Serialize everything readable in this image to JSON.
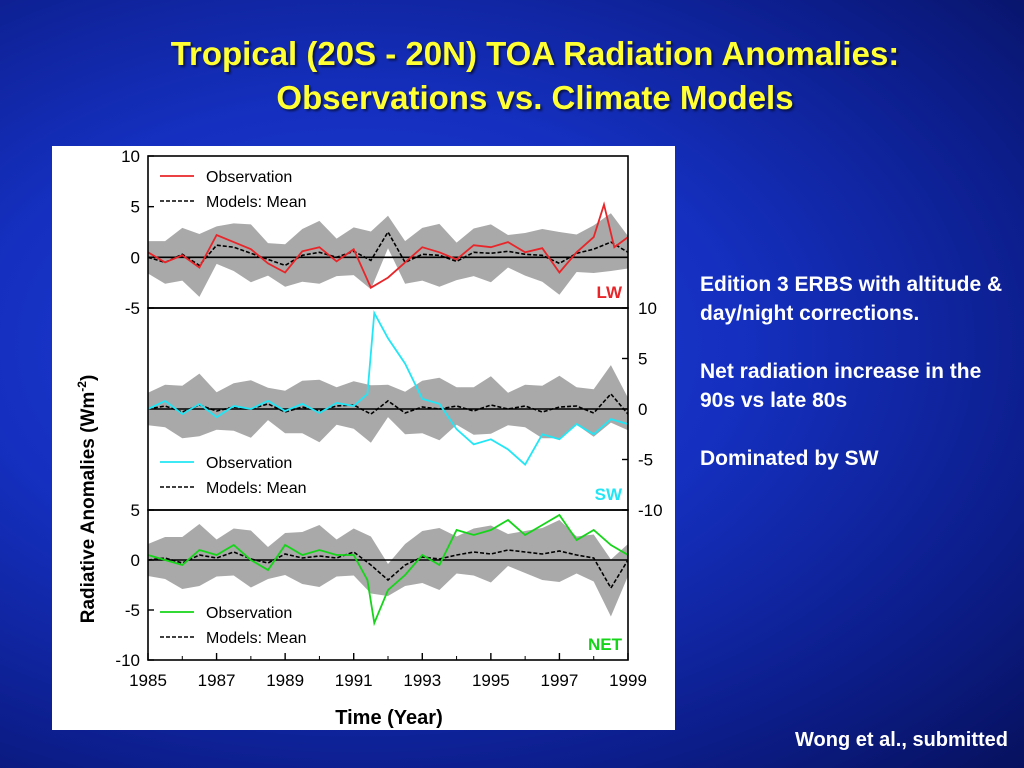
{
  "slide": {
    "title_line1": "Tropical (20S - 20N)  TOA Radiation Anomalies:",
    "title_line2": "Observations vs. Climate Models",
    "notes": [
      "Edition 3 ERBS with altitude & day/night corrections.",
      "Net radiation increase in the 90s vs late 80s",
      "Dominated by SW"
    ],
    "citation": "Wong et al., submitted"
  },
  "colors": {
    "title": "#ffff33",
    "lw_observation": "#e8262a",
    "sw_observation": "#22e6f5",
    "net_observation": "#16d41a",
    "lw_label": "#e8262a",
    "sw_label": "#22e6f5",
    "net_label": "#16d41a",
    "model_band": "#a9a9a9",
    "model_mean": "#000000"
  },
  "chart_data": {
    "type": "line",
    "xlabel": "Time (Year)",
    "ylabel": "Radiative Anomalies (Wm",
    "ylabel_superscript": "-2",
    "ylabel_close": ")",
    "xlim": [
      1985,
      1999
    ],
    "x_ticks": [
      "1985",
      "1987",
      "1989",
      "1991",
      "1993",
      "1995",
      "1997",
      "1999"
    ],
    "panels": [
      {
        "id": "LW",
        "label": "LW",
        "ylim": [
          -5,
          10
        ],
        "y_ticks": [
          "10",
          "5",
          "0",
          "-5"
        ],
        "tick_side": "left",
        "legend": [
          "Observation",
          "Models: Mean"
        ],
        "series": [
          {
            "name": "Observation",
            "x": [
              1985.0,
              1985.5,
              1986.0,
              1986.5,
              1987.0,
              1987.5,
              1988.0,
              1988.5,
              1989.0,
              1989.5,
              1990.0,
              1990.5,
              1991.0,
              1991.5,
              1992.0,
              1992.5,
              1993.0,
              1993.5,
              1994.0,
              1994.5,
              1995.0,
              1995.5,
              1996.0,
              1996.5,
              1997.0,
              1997.5,
              1998.0,
              1998.3,
              1998.6,
              1999.0
            ],
            "values": [
              0.5,
              -0.5,
              0.2,
              -1.0,
              2.2,
              1.5,
              0.8,
              -0.6,
              -1.5,
              0.6,
              1.0,
              -0.4,
              0.8,
              -3.0,
              -2.0,
              -0.5,
              1.0,
              0.5,
              -0.2,
              1.2,
              1.0,
              1.5,
              0.5,
              0.9,
              -1.5,
              0.5,
              2.0,
              5.2,
              1.0,
              2.0
            ]
          },
          {
            "name": "Models: Mean",
            "x": [
              1985.0,
              1985.5,
              1986.0,
              1986.5,
              1987.0,
              1987.5,
              1988.0,
              1988.5,
              1989.0,
              1989.5,
              1990.0,
              1990.5,
              1991.0,
              1991.5,
              1992.0,
              1992.5,
              1993.0,
              1993.5,
              1994.0,
              1994.5,
              1995.0,
              1995.5,
              1996.0,
              1996.5,
              1997.0,
              1997.5,
              1998.0,
              1998.5,
              1999.0
            ],
            "values": [
              0.0,
              -0.5,
              0.3,
              -0.8,
              1.2,
              1.0,
              0.4,
              -0.2,
              -0.8,
              0.2,
              0.5,
              0.0,
              0.6,
              -0.3,
              2.5,
              -0.5,
              0.3,
              0.2,
              -0.4,
              0.5,
              0.4,
              0.6,
              0.3,
              0.2,
              -0.6,
              0.4,
              0.8,
              1.5,
              0.5
            ]
          }
        ]
      },
      {
        "id": "SW",
        "label": "SW",
        "ylim": [
          -10,
          10
        ],
        "y_ticks": [
          "10",
          "5",
          "0",
          "-5",
          "-10"
        ],
        "tick_side": "right",
        "legend": [
          "Observation",
          "Models: Mean"
        ],
        "series": [
          {
            "name": "Observation",
            "x": [
              1985.0,
              1985.5,
              1986.0,
              1986.5,
              1987.0,
              1987.5,
              1988.0,
              1988.5,
              1989.0,
              1989.5,
              1990.0,
              1990.5,
              1991.0,
              1991.4,
              1991.6,
              1992.0,
              1992.5,
              1993.0,
              1993.5,
              1994.0,
              1994.5,
              1995.0,
              1995.5,
              1996.0,
              1996.5,
              1997.0,
              1997.5,
              1998.0,
              1998.5,
              1999.0
            ],
            "values": [
              0.0,
              0.8,
              -0.5,
              0.5,
              -0.8,
              0.3,
              0.0,
              0.8,
              -0.2,
              0.5,
              -0.4,
              0.6,
              0.3,
              1.5,
              9.5,
              7.0,
              4.5,
              1.0,
              0.5,
              -2.0,
              -3.5,
              -3.0,
              -4.0,
              -5.5,
              -2.5,
              -3.0,
              -1.5,
              -2.5,
              -1.0,
              -1.5
            ]
          },
          {
            "name": "Models: Mean",
            "x": [
              1985.0,
              1985.5,
              1986.0,
              1986.5,
              1987.0,
              1987.5,
              1988.0,
              1988.5,
              1989.0,
              1989.5,
              1990.0,
              1990.5,
              1991.0,
              1991.5,
              1992.0,
              1992.5,
              1993.0,
              1993.5,
              1994.0,
              1994.5,
              1995.0,
              1995.5,
              1996.0,
              1996.5,
              1997.0,
              1997.5,
              1998.0,
              1998.5,
              1999.0
            ],
            "values": [
              0.0,
              0.3,
              -0.3,
              0.4,
              -0.2,
              0.2,
              0.0,
              0.5,
              -0.3,
              0.2,
              -0.2,
              0.3,
              0.4,
              -0.5,
              0.8,
              -0.4,
              0.2,
              0.0,
              0.3,
              -0.2,
              0.4,
              0.0,
              0.3,
              -0.3,
              0.2,
              0.3,
              -0.4,
              1.5,
              -0.5
            ]
          }
        ]
      },
      {
        "id": "NET",
        "label": "NET",
        "ylim": [
          -10,
          5
        ],
        "y_ticks": [
          "5",
          "0",
          "-5",
          "-10"
        ],
        "tick_side": "left",
        "legend": [
          "Observation",
          "Models: Mean"
        ],
        "series": [
          {
            "name": "Observation",
            "x": [
              1985.0,
              1985.5,
              1986.0,
              1986.5,
              1987.0,
              1987.5,
              1988.0,
              1988.5,
              1989.0,
              1989.5,
              1990.0,
              1990.5,
              1991.0,
              1991.4,
              1991.6,
              1992.0,
              1992.5,
              1993.0,
              1993.5,
              1994.0,
              1994.5,
              1995.0,
              1995.5,
              1996.0,
              1996.5,
              1997.0,
              1997.5,
              1998.0,
              1998.5,
              1999.0
            ],
            "values": [
              0.5,
              0.0,
              -0.5,
              1.0,
              0.5,
              1.5,
              0.0,
              -1.0,
              1.5,
              0.5,
              1.0,
              0.5,
              0.5,
              -2.0,
              -6.3,
              -3.0,
              -1.5,
              0.5,
              -0.5,
              3.0,
              2.5,
              3.0,
              4.0,
              2.5,
              3.5,
              4.5,
              2.0,
              3.0,
              1.5,
              0.5
            ]
          },
          {
            "name": "Models: Mean",
            "x": [
              1985.0,
              1985.5,
              1986.0,
              1986.5,
              1987.0,
              1987.5,
              1988.0,
              1988.5,
              1989.0,
              1989.5,
              1990.0,
              1990.5,
              1991.0,
              1991.5,
              1992.0,
              1992.5,
              1993.0,
              1993.5,
              1994.0,
              1994.5,
              1995.0,
              1995.5,
              1996.0,
              1996.5,
              1997.0,
              1997.5,
              1998.0,
              1998.5,
              1999.0
            ],
            "values": [
              0.0,
              0.2,
              -0.3,
              0.5,
              0.2,
              0.8,
              0.1,
              -0.3,
              0.6,
              0.2,
              0.4,
              0.2,
              0.8,
              -0.5,
              -2.0,
              -0.5,
              0.3,
              0.1,
              0.5,
              0.8,
              0.6,
              1.0,
              0.8,
              0.6,
              0.9,
              0.5,
              0.2,
              -2.8,
              0.0
            ]
          }
        ]
      }
    ]
  }
}
